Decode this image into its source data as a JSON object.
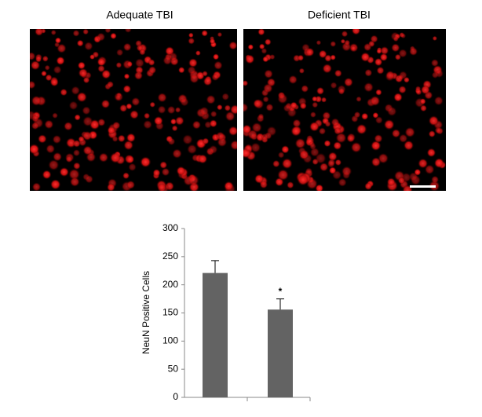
{
  "images": {
    "labels": [
      "Adequate TBI",
      "Deficient TBI"
    ]
  },
  "chart_data": {
    "type": "bar",
    "categories": [
      null,
      null
    ],
    "values": [
      221,
      156
    ],
    "errors": [
      22,
      19
    ],
    "color": "#636363",
    "ylabel": "NeuN Positive Cells",
    "ylim": [
      0,
      300
    ],
    "yticks": [
      0,
      50,
      100,
      150,
      200,
      250,
      300
    ],
    "annotation": "*"
  }
}
